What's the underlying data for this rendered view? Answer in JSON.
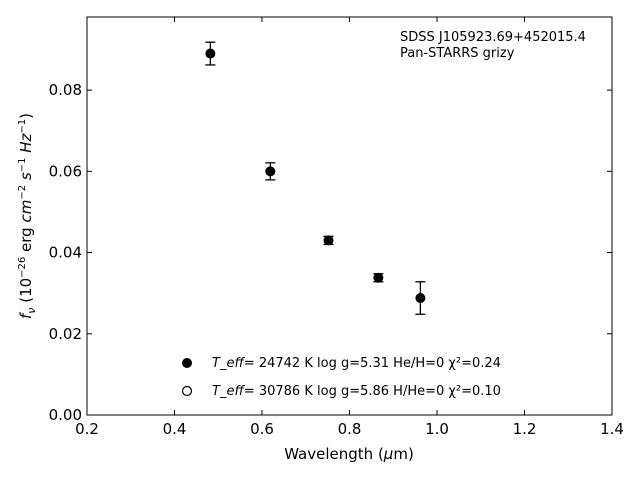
{
  "chart_data": {
    "type": "scatter",
    "annotation": [
      "SDSS J105923.69+452015.4",
      "Pan-STARRS grizy"
    ],
    "xlabel": "Wavelength (μm)",
    "ylabel": "f_ν (10^-26 erg cm^-2 s^-1 Hz^-1)",
    "xlim": [
      0.2,
      1.4
    ],
    "ylim": [
      0.0,
      0.098
    ],
    "xticks": [
      0.2,
      0.4,
      0.6,
      0.8,
      1.0,
      1.2,
      1.4
    ],
    "xtick_labels": [
      "0.2",
      "0.4",
      "0.6",
      "0.8",
      "1.0",
      "1.2",
      "1.4"
    ],
    "yticks": [
      0.0,
      0.02,
      0.04,
      0.06,
      0.08
    ],
    "ytick_labels": [
      "0.00",
      "0.02",
      "0.04",
      "0.06",
      "0.08"
    ],
    "grid": false,
    "legend_placement": "lower-center",
    "series": [
      {
        "style": "filled-circle-errorbar",
        "x": [
          0.482,
          0.619,
          0.752,
          0.866,
          0.962
        ],
        "y": [
          0.089,
          0.06,
          0.043,
          0.0338,
          0.0288
        ],
        "yerr": [
          0.0028,
          0.0021,
          0.001,
          0.001,
          0.004
        ]
      }
    ],
    "legend": [
      {
        "marker": "filled-circle",
        "teff_label": "T_eff",
        "text": "= 24742 K  log g=5.31  He/H=0  χ²=0.24"
      },
      {
        "marker": "open-circle",
        "teff_label": "T_eff",
        "text": "= 30786 K  log g=5.86  H/He=0  χ²=0.10"
      }
    ]
  }
}
